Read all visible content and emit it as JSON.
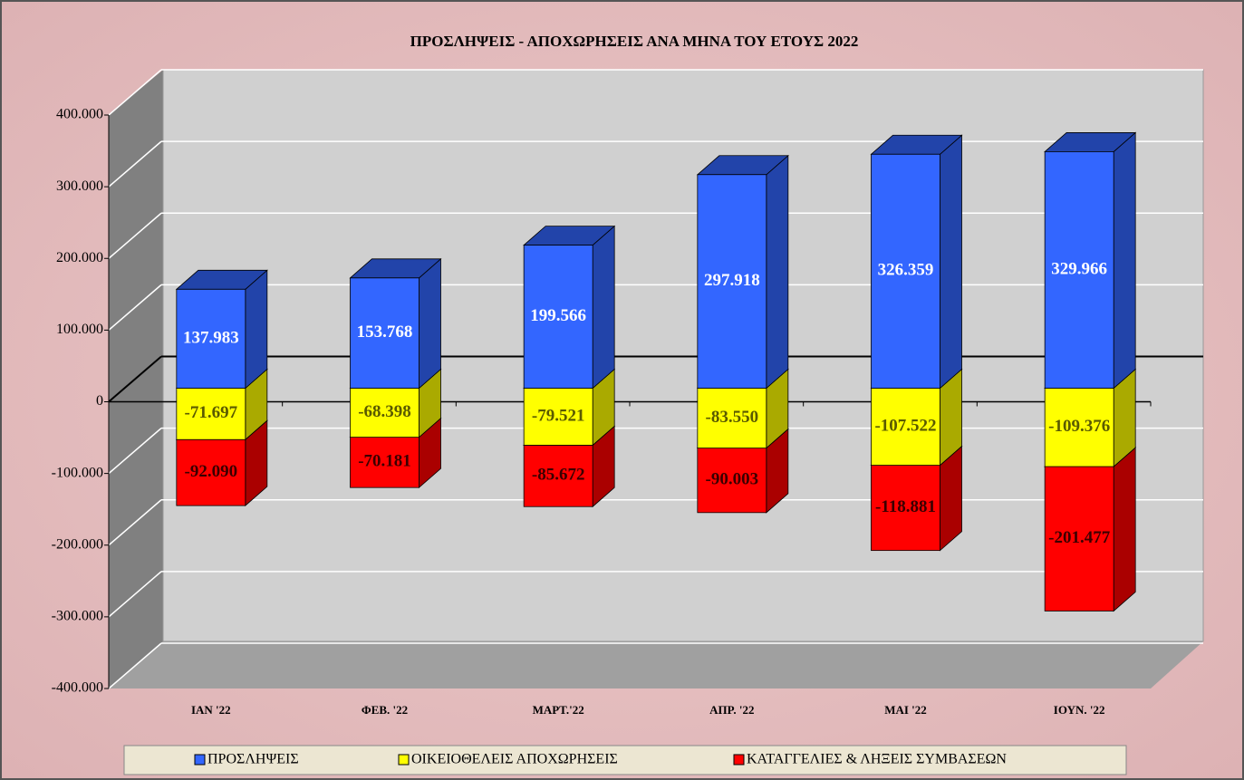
{
  "chart_data": {
    "type": "bar3d_stacked",
    "title": "ΠΡΟΣΛΗΨΕΙΣ - ΑΠΟΧΩΡΗΣΕΙΣ  ΑΝΑ ΜΗΝΑ ΤΟΥ  ΕΤΟΥΣ  2022",
    "categories": [
      "ΙΑΝ  '22",
      "ΦΕΒ. '22",
      "ΜΑΡΤ.'22",
      "ΑΠΡ. '22",
      "ΜΑΙ  '22",
      "ΙΟΥΝ. '22"
    ],
    "series": [
      {
        "name": "ΠΡΟΣΛΗΨΕΙΣ",
        "color": "#3366ff",
        "side": "#2244aa",
        "values": [
          137983,
          153768,
          199566,
          297918,
          326359,
          329966
        ],
        "value_labels": [
          "137.983",
          "153.768",
          "199.566",
          "297.918",
          "326.359",
          "329.966"
        ]
      },
      {
        "name": "ΟΙΚΕΙΟΘΕΛΕΙΣ ΑΠΟΧΩΡΗΣΕΙΣ",
        "color": "#ffff00",
        "side": "#aaaa00",
        "values": [
          -71697,
          -68398,
          -79521,
          -83550,
          -107522,
          -109376
        ],
        "value_labels": [
          "-71.697",
          "-68.398",
          "-79.521",
          "-83.550",
          "-107.522",
          "-109.376"
        ]
      },
      {
        "name": "ΚΑΤΑΓΓΕΛΙΕΣ & ΛΗΞΕΙΣ ΣΥΜΒΑΣΕΩΝ",
        "color": "#ff0000",
        "side": "#aa0000",
        "values": [
          -92090,
          -70181,
          -85672,
          -90003,
          -118881,
          -201477
        ],
        "value_labels": [
          "-92.090",
          "-70.181",
          "-85.672",
          "-90.003",
          "-118.881",
          "-201.477"
        ]
      }
    ],
    "ylim": [
      -400000,
      400000
    ],
    "yticks": [
      {
        "value": -400000,
        "label": "-400.000"
      },
      {
        "value": -300000,
        "label": "-300.000"
      },
      {
        "value": -200000,
        "label": "-200.000"
      },
      {
        "value": -100000,
        "label": "-100.000"
      },
      0,
      {
        "value": 100000,
        "label": "100.000"
      },
      {
        "value": 200000,
        "label": "200.000"
      },
      {
        "value": 300000,
        "label": "300.000"
      },
      {
        "value": 400000,
        "label": "400.000"
      }
    ],
    "grid": true,
    "legend": "bottom"
  }
}
